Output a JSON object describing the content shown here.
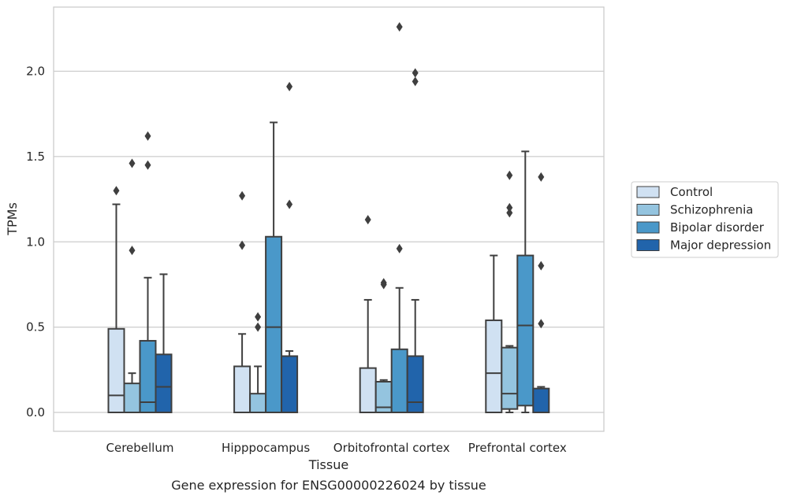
{
  "chart_data": {
    "type": "box",
    "xlabel": "Tissue",
    "ylabel": "TPMs",
    "caption": "Gene expression for ENSG00000226024 by tissue",
    "ylim": [
      -0.11,
      2.38
    ],
    "yticks": [
      0.0,
      0.5,
      1.0,
      1.5,
      2.0
    ],
    "ytick_labels": [
      "0.0",
      "0.5",
      "1.0",
      "1.5",
      "2.0"
    ],
    "grid": "horizontal",
    "legend_position": "right",
    "categories": [
      "Cerebellum",
      "Hipppocampus",
      "Orbitofrontal cortex",
      "Prefrontal cortex"
    ],
    "series": [
      {
        "name": "Control",
        "color": "#d0e1f2",
        "boxes": [
          {
            "whislo": 0.0,
            "q1": 0.0,
            "med": 0.1,
            "q3": 0.49,
            "whishi": 1.22,
            "fliers": [
              1.3
            ]
          },
          {
            "whislo": 0.0,
            "q1": 0.0,
            "med": 0.0,
            "q3": 0.27,
            "whishi": 0.46,
            "fliers": [
              0.98,
              1.27
            ]
          },
          {
            "whislo": 0.0,
            "q1": 0.0,
            "med": 0.0,
            "q3": 0.26,
            "whishi": 0.66,
            "fliers": [
              1.13
            ]
          },
          {
            "whislo": 0.0,
            "q1": 0.0,
            "med": 0.23,
            "q3": 0.54,
            "whishi": 0.92,
            "fliers": []
          }
        ]
      },
      {
        "name": "Schizophrenia",
        "color": "#94c4df",
        "boxes": [
          {
            "whislo": 0.0,
            "q1": 0.0,
            "med": 0.0,
            "q3": 0.17,
            "whishi": 0.23,
            "fliers": [
              0.95,
              1.46
            ]
          },
          {
            "whislo": 0.0,
            "q1": 0.0,
            "med": 0.0,
            "q3": 0.11,
            "whishi": 0.27,
            "fliers": [
              0.5,
              0.56
            ]
          },
          {
            "whislo": 0.0,
            "q1": 0.0,
            "med": 0.03,
            "q3": 0.18,
            "whishi": 0.19,
            "fliers": [
              0.75,
              0.76
            ]
          },
          {
            "whislo": 0.0,
            "q1": 0.02,
            "med": 0.11,
            "q3": 0.38,
            "whishi": 0.39,
            "fliers": [
              1.17,
              1.2,
              1.39
            ]
          }
        ]
      },
      {
        "name": "Bipolar disorder",
        "color": "#4a98c9",
        "boxes": [
          {
            "whislo": 0.0,
            "q1": 0.0,
            "med": 0.06,
            "q3": 0.42,
            "whishi": 0.79,
            "fliers": [
              1.45,
              1.62
            ]
          },
          {
            "whislo": 0.0,
            "q1": 0.0,
            "med": 0.5,
            "q3": 1.03,
            "whishi": 1.7,
            "fliers": []
          },
          {
            "whislo": 0.0,
            "q1": 0.0,
            "med": 0.0,
            "q3": 0.37,
            "whishi": 0.73,
            "fliers": [
              0.96,
              2.26
            ]
          },
          {
            "whislo": 0.0,
            "q1": 0.04,
            "med": 0.51,
            "q3": 0.92,
            "whishi": 1.53,
            "fliers": []
          }
        ]
      },
      {
        "name": "Major depression",
        "color": "#2164ab",
        "boxes": [
          {
            "whislo": 0.0,
            "q1": 0.0,
            "med": 0.15,
            "q3": 0.34,
            "whishi": 0.81,
            "fliers": []
          },
          {
            "whislo": 0.0,
            "q1": 0.0,
            "med": 0.0,
            "q3": 0.33,
            "whishi": 0.36,
            "fliers": [
              1.22,
              1.91
            ]
          },
          {
            "whislo": 0.0,
            "q1": 0.0,
            "med": 0.06,
            "q3": 0.33,
            "whishi": 0.66,
            "fliers": [
              1.94,
              1.99
            ]
          },
          {
            "whislo": 0.0,
            "q1": 0.0,
            "med": 0.0,
            "q3": 0.14,
            "whishi": 0.15,
            "fliers": [
              0.52,
              0.86,
              1.38
            ]
          }
        ]
      }
    ]
  }
}
